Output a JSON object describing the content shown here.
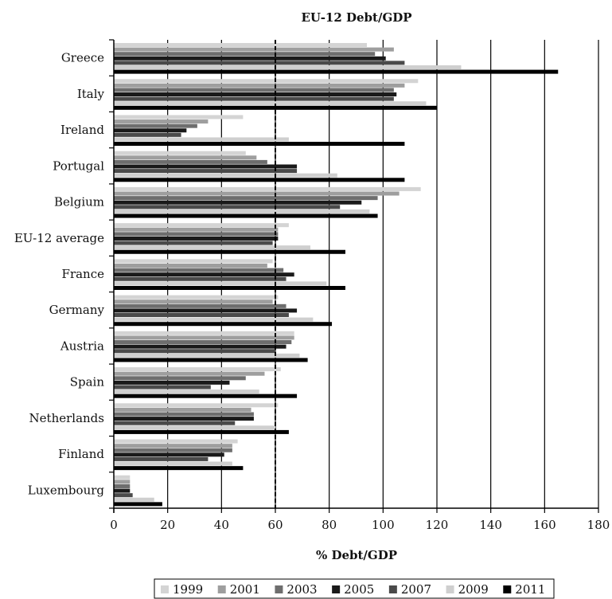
{
  "chart_data": {
    "type": "bar",
    "orientation": "horizontal",
    "title": "EU-12 Debt/GDP",
    "xlabel": "% Debt/GDP",
    "ylabel": "",
    "xlim": [
      0,
      180
    ],
    "xticks": [
      0,
      20,
      40,
      60,
      80,
      100,
      120,
      140,
      160,
      180
    ],
    "grid": "vertical",
    "reference_line": {
      "x": 60,
      "style": "dashed"
    },
    "legend_position": "bottom",
    "categories": [
      "Greece",
      "Italy",
      "Ireland",
      "Portugal",
      "Belgium",
      "EU-12 average",
      "France",
      "Germany",
      "Austria",
      "Spain",
      "Netherlands",
      "Finland",
      "Luxembourg"
    ],
    "series": [
      {
        "name": "1999",
        "color": "#d4d4d4",
        "values": [
          94,
          113,
          48,
          49,
          114,
          65,
          59,
          61,
          67,
          62,
          61,
          46,
          6
        ]
      },
      {
        "name": "2001",
        "color": "#9e9e9e",
        "values": [
          104,
          108,
          35,
          53,
          106,
          61,
          57,
          59,
          67,
          56,
          51,
          44,
          6
        ]
      },
      {
        "name": "2003",
        "color": "#6e6e6e",
        "values": [
          97,
          104,
          31,
          57,
          98,
          61,
          63,
          64,
          66,
          49,
          52,
          44,
          6
        ]
      },
      {
        "name": "2005",
        "color": "#1a1a1a",
        "values": [
          101,
          105,
          27,
          68,
          92,
          61,
          67,
          68,
          64,
          43,
          52,
          41,
          6
        ]
      },
      {
        "name": "2007",
        "color": "#4a4a4a",
        "values": [
          108,
          104,
          25,
          68,
          84,
          59,
          64,
          65,
          60,
          36,
          45,
          35,
          7
        ]
      },
      {
        "name": "2009",
        "color": "#cfcfcf",
        "values": [
          129,
          116,
          65,
          83,
          95,
          73,
          79,
          74,
          69,
          54,
          60,
          44,
          15
        ]
      },
      {
        "name": "2011",
        "color": "#000000",
        "values": [
          165,
          120,
          108,
          108,
          98,
          86,
          86,
          81,
          72,
          68,
          65,
          48,
          18
        ]
      }
    ]
  }
}
